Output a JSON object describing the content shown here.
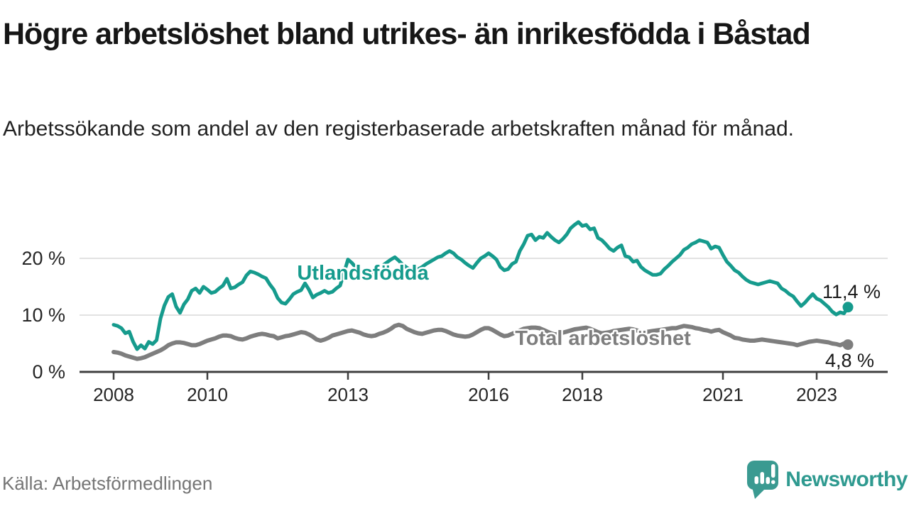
{
  "header": {
    "title": "Högre arbetslöshet bland utrikes- än inrikesfödda i Båstad",
    "subtitle": "Arbetssökande som andel av den registerbaserade arbetskraften månad för månad."
  },
  "footer": {
    "source": "Källa: Arbetsförmedlingen",
    "logo_text": "Newsworthy"
  },
  "colors": {
    "accent_teal": "#169b8d",
    "series_gray": "#7e7e7e",
    "gridline": "#d9d9d9",
    "axis": "#3f3f3f",
    "logo_teal": "#2f9a90",
    "icon_teal": "#3a9a91"
  },
  "chart_data": {
    "type": "line",
    "x_unit": "month",
    "x_start": "2008-01",
    "x_end": "2023-09",
    "x_tick_years": [
      2008,
      2010,
      2013,
      2016,
      2018,
      2021,
      2023
    ],
    "y_axis": {
      "tick_labels": [
        "0 %",
        "10 %",
        "20 %"
      ],
      "tick_values": [
        0,
        10,
        20
      ],
      "grid_values": [
        10,
        20
      ],
      "ylim": [
        0,
        27
      ],
      "grid": true
    },
    "legend_position": "inline-labels",
    "series": [
      {
        "name": "Total arbetslöshet",
        "color": "#7e7e7e",
        "end_label": "4,8 %",
        "end_value": 4.8,
        "values": [
          3.5,
          3.4,
          3.2,
          2.9,
          2.7,
          2.5,
          2.3,
          2.4,
          2.6,
          2.9,
          3.2,
          3.5,
          3.8,
          4.2,
          4.7,
          5.0,
          5.2,
          5.2,
          5.1,
          4.9,
          4.7,
          4.7,
          4.9,
          5.2,
          5.5,
          5.7,
          5.9,
          6.2,
          6.4,
          6.4,
          6.3,
          6.0,
          5.8,
          5.7,
          5.9,
          6.2,
          6.4,
          6.6,
          6.7,
          6.6,
          6.4,
          6.3,
          5.9,
          6.1,
          6.3,
          6.4,
          6.6,
          6.8,
          7.0,
          6.9,
          6.6,
          6.2,
          5.7,
          5.5,
          5.7,
          6.0,
          6.4,
          6.6,
          6.8,
          7.0,
          7.2,
          7.3,
          7.1,
          6.9,
          6.6,
          6.4,
          6.3,
          6.4,
          6.7,
          6.9,
          7.2,
          7.6,
          8.1,
          8.3,
          8.1,
          7.6,
          7.3,
          7.0,
          6.8,
          6.7,
          6.9,
          7.1,
          7.3,
          7.4,
          7.4,
          7.2,
          6.9,
          6.6,
          6.4,
          6.3,
          6.2,
          6.3,
          6.6,
          7.0,
          7.4,
          7.7,
          7.7,
          7.4,
          7.0,
          6.6,
          6.3,
          6.4,
          6.7,
          7.0,
          7.3,
          7.6,
          7.7,
          7.8,
          7.8,
          7.7,
          7.4,
          7.1,
          6.8,
          6.6,
          6.7,
          6.9,
          7.1,
          7.3,
          7.5,
          7.6,
          7.7,
          7.8,
          7.6,
          7.3,
          7.0,
          6.8,
          6.9,
          7.0,
          7.2,
          7.3,
          7.4,
          7.5,
          7.6,
          7.5,
          7.3,
          7.1,
          7.0,
          7.1,
          7.2,
          7.3,
          7.4,
          7.5,
          7.6,
          7.7,
          7.7,
          7.9,
          8.1,
          8.0,
          7.9,
          7.7,
          7.6,
          7.4,
          7.3,
          7.1,
          7.3,
          7.4,
          7.0,
          6.7,
          6.4,
          6.0,
          5.9,
          5.7,
          5.6,
          5.5,
          5.5,
          5.6,
          5.7,
          5.6,
          5.5,
          5.4,
          5.3,
          5.2,
          5.1,
          5.0,
          4.9,
          4.7,
          4.9,
          5.1,
          5.3,
          5.4,
          5.5,
          5.4,
          5.3,
          5.2,
          5.0,
          4.9,
          4.7,
          5.0,
          4.8
        ]
      },
      {
        "name": "Utlandsfödda",
        "color": "#169b8d",
        "end_label": "11,4 %",
        "end_value": 11.4,
        "values": [
          8.3,
          8.1,
          7.7,
          6.8,
          7.1,
          5.3,
          4.0,
          4.7,
          4.1,
          5.3,
          4.9,
          5.6,
          9.4,
          11.7,
          13.2,
          13.7,
          11.5,
          10.4,
          11.9,
          12.8,
          14.3,
          14.7,
          13.9,
          15.0,
          14.5,
          13.9,
          14.1,
          14.7,
          15.2,
          16.4,
          14.7,
          14.9,
          15.4,
          15.8,
          17.0,
          17.7,
          17.5,
          17.2,
          16.8,
          16.5,
          15.4,
          14.5,
          13.0,
          12.2,
          12.0,
          12.8,
          13.7,
          14.1,
          14.4,
          15.6,
          14.5,
          13.1,
          13.6,
          13.9,
          14.3,
          13.9,
          14.1,
          14.7,
          15.2,
          17.5,
          19.8,
          19.2,
          18.4,
          17.8,
          17.3,
          17.0,
          17.4,
          17.8,
          18.3,
          18.8,
          19.3,
          19.8,
          20.2,
          19.6,
          18.9,
          18.4,
          18.0,
          17.8,
          18.1,
          18.5,
          19.0,
          19.4,
          19.8,
          20.2,
          20.4,
          20.9,
          21.3,
          20.9,
          20.2,
          19.8,
          19.2,
          18.7,
          18.3,
          19.2,
          20.0,
          20.4,
          20.9,
          20.4,
          19.8,
          18.5,
          17.9,
          18.1,
          19.0,
          19.4,
          21.3,
          22.5,
          24.0,
          24.2,
          23.2,
          23.8,
          23.6,
          24.5,
          23.8,
          23.2,
          22.8,
          23.4,
          24.2,
          25.3,
          25.9,
          26.4,
          25.7,
          25.9,
          25.1,
          25.3,
          23.6,
          23.2,
          22.5,
          21.7,
          21.3,
          21.9,
          22.3,
          20.4,
          20.2,
          19.4,
          19.6,
          18.5,
          17.9,
          17.5,
          17.1,
          17.1,
          17.3,
          18.1,
          18.7,
          19.4,
          20.0,
          20.6,
          21.5,
          21.9,
          22.5,
          22.8,
          23.2,
          23.0,
          22.8,
          21.7,
          22.1,
          21.9,
          20.6,
          19.4,
          18.7,
          17.9,
          17.5,
          16.8,
          16.2,
          15.8,
          15.6,
          15.4,
          15.6,
          15.8,
          16.0,
          15.8,
          15.6,
          14.7,
          14.3,
          13.7,
          13.3,
          12.4,
          11.6,
          12.2,
          13.0,
          13.7,
          12.9,
          12.6,
          12.0,
          11.4,
          10.6,
          10.1,
          10.5,
          10.3,
          11.4
        ]
      }
    ]
  }
}
